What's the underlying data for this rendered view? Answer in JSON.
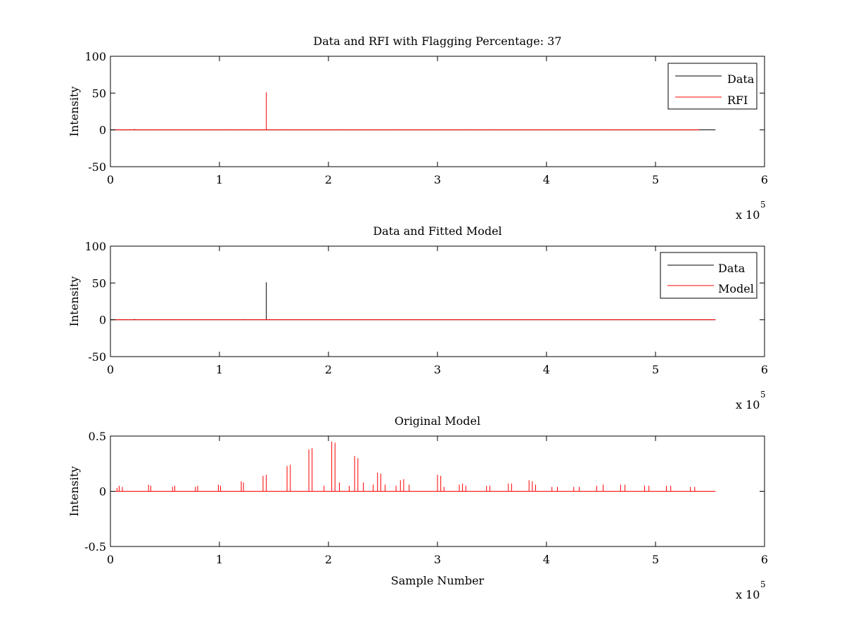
{
  "figure": {
    "background": "#ffffff"
  },
  "colors": {
    "data": "#000000",
    "red": "#ff0000"
  },
  "chart_data": [
    {
      "type": "line",
      "title": "Data and RFI with Flagging Percentage: 37",
      "xlabel": "",
      "ylabel": "Intensity",
      "xlim": [
        0,
        600000
      ],
      "ylim": [
        -50,
        100
      ],
      "xticks": [
        0,
        100000,
        200000,
        300000,
        400000,
        500000,
        600000
      ],
      "xtick_labels": [
        "0",
        "1",
        "2",
        "3",
        "4",
        "5",
        "6"
      ],
      "yticks": [
        -50,
        0,
        50,
        100
      ],
      "ytick_labels": [
        "-50",
        "0",
        "50",
        "100"
      ],
      "x_multiplier": {
        "base": "x 10",
        "exponent": "5"
      },
      "legend": {
        "position": "top-right",
        "entries": [
          "Data",
          "RFI"
        ]
      },
      "series": [
        {
          "name": "Data",
          "color": "#000000",
          "baseline": [
            [
              0,
              0
            ],
            [
              555000,
              0
            ]
          ],
          "spikes": [
            [
              22000,
              1.2
            ],
            [
              143000,
              0.8
            ],
            [
              210000,
              0.6
            ],
            [
              330000,
              0.5
            ]
          ]
        },
        {
          "name": "RFI",
          "color": "#ff0000",
          "baseline": [
            [
              0,
              0
            ],
            [
              540000,
              0
            ]
          ],
          "spikes": [
            [
              22000,
              1
            ],
            [
              43000,
              0.6
            ],
            [
              64000,
              0.6
            ],
            [
              86000,
              0.6
            ],
            [
              107000,
              0.6
            ],
            [
              122000,
              0.8
            ],
            [
              130000,
              0.6
            ],
            [
              143000,
              51
            ],
            [
              160000,
              0.6
            ],
            [
              182000,
              0.6
            ],
            [
              210000,
              0.8
            ],
            [
              230000,
              0.6
            ],
            [
              260000,
              0.6
            ],
            [
              300000,
              0.6
            ],
            [
              350000,
              0.6
            ],
            [
              400000,
              0.6
            ],
            [
              450000,
              0.6
            ],
            [
              500000,
              0.6
            ],
            [
              540000,
              0.8
            ]
          ]
        }
      ]
    },
    {
      "type": "line",
      "title": "Data and Fitted Model",
      "xlabel": "",
      "ylabel": "Intensity",
      "xlim": [
        0,
        600000
      ],
      "ylim": [
        -50,
        100
      ],
      "xticks": [
        0,
        100000,
        200000,
        300000,
        400000,
        500000,
        600000
      ],
      "xtick_labels": [
        "0",
        "1",
        "2",
        "3",
        "4",
        "5",
        "6"
      ],
      "yticks": [
        -50,
        0,
        50,
        100
      ],
      "ytick_labels": [
        "-50",
        "0",
        "50",
        "100"
      ],
      "x_multiplier": {
        "base": "x 10",
        "exponent": "5"
      },
      "legend": {
        "position": "top-right",
        "entries": [
          "Data",
          "Model"
        ]
      },
      "series": [
        {
          "name": "Data",
          "color": "#000000",
          "baseline": [
            [
              0,
              0
            ],
            [
              555000,
              0
            ]
          ],
          "spikes": [
            [
              22000,
              1.2
            ],
            [
              122000,
              0.8
            ],
            [
              143000,
              51
            ],
            [
              210000,
              0.8
            ],
            [
              330000,
              0.6
            ]
          ]
        },
        {
          "name": "Model",
          "color": "#ff0000",
          "baseline": [
            [
              0,
              0
            ],
            [
              555000,
              0
            ]
          ],
          "spikes": [
            [
              143000,
              1
            ],
            [
              146000,
              1
            ],
            [
              149000,
              0.8
            ]
          ]
        }
      ]
    },
    {
      "type": "line",
      "title": "Original Model",
      "xlabel": "Sample Number",
      "ylabel": "Intensity",
      "xlim": [
        0,
        600000
      ],
      "ylim": [
        -0.5,
        0.5
      ],
      "xticks": [
        0,
        100000,
        200000,
        300000,
        400000,
        500000,
        600000
      ],
      "xtick_labels": [
        "0",
        "1",
        "2",
        "3",
        "4",
        "5",
        "6"
      ],
      "yticks": [
        -0.5,
        0,
        0.5
      ],
      "ytick_labels": [
        "-0.5",
        "0",
        "0.5"
      ],
      "x_multiplier": {
        "base": "x 10",
        "exponent": "5"
      },
      "legend": null,
      "series": [
        {
          "color": "#ff0000",
          "baseline": [
            [
              0,
              0
            ],
            [
              555000,
              0
            ]
          ],
          "spikes": [
            [
              6000,
              0.03
            ],
            [
              8000,
              0.05
            ],
            [
              11000,
              0.04
            ],
            [
              35000,
              0.06
            ],
            [
              37000,
              0.05
            ],
            [
              57000,
              0.04
            ],
            [
              59000,
              0.05
            ],
            [
              78000,
              0.04
            ],
            [
              80000,
              0.05
            ],
            [
              99000,
              0.06
            ],
            [
              101000,
              0.05
            ],
            [
              120000,
              0.09
            ],
            [
              122000,
              0.08
            ],
            [
              140000,
              0.14
            ],
            [
              143000,
              0.15
            ],
            [
              162000,
              0.23
            ],
            [
              165000,
              0.24
            ],
            [
              182000,
              0.38
            ],
            [
              185000,
              0.39
            ],
            [
              196000,
              0.05
            ],
            [
              203000,
              0.45
            ],
            [
              206000,
              0.44
            ],
            [
              210000,
              0.08
            ],
            [
              219000,
              0.05
            ],
            [
              224000,
              0.32
            ],
            [
              227000,
              0.3
            ],
            [
              232000,
              0.08
            ],
            [
              241000,
              0.06
            ],
            [
              245000,
              0.17
            ],
            [
              248000,
              0.16
            ],
            [
              252000,
              0.06
            ],
            [
              262000,
              0.05
            ],
            [
              266000,
              0.1
            ],
            [
              269000,
              0.11
            ],
            [
              274000,
              0.06
            ],
            [
              300000,
              0.15
            ],
            [
              303000,
              0.14
            ],
            [
              306000,
              0.04
            ],
            [
              320000,
              0.06
            ],
            [
              323000,
              0.07
            ],
            [
              326000,
              0.05
            ],
            [
              345000,
              0.05
            ],
            [
              348000,
              0.05
            ],
            [
              365000,
              0.07
            ],
            [
              368000,
              0.07
            ],
            [
              384000,
              0.1
            ],
            [
              387000,
              0.09
            ],
            [
              390000,
              0.06
            ],
            [
              405000,
              0.04
            ],
            [
              410000,
              0.04
            ],
            [
              425000,
              0.04
            ],
            [
              430000,
              0.04
            ],
            [
              446000,
              0.05
            ],
            [
              452000,
              0.06
            ],
            [
              468000,
              0.06
            ],
            [
              472000,
              0.06
            ],
            [
              490000,
              0.05
            ],
            [
              494000,
              0.05
            ],
            [
              510000,
              0.05
            ],
            [
              514000,
              0.05
            ],
            [
              532000,
              0.04
            ],
            [
              536000,
              0.04
            ]
          ]
        }
      ]
    }
  ]
}
